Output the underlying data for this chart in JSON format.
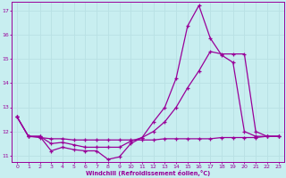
{
  "xlabel": "Windchill (Refroidissement éolien,°C)",
  "bg_color": "#c8eef0",
  "line_color": "#990099",
  "grid_color": "#b8e0e4",
  "xlim": [
    -0.5,
    23.5
  ],
  "ylim": [
    10.75,
    17.35
  ],
  "xticks": [
    0,
    1,
    2,
    3,
    4,
    5,
    6,
    7,
    8,
    9,
    10,
    11,
    12,
    13,
    14,
    15,
    16,
    17,
    18,
    19,
    20,
    21,
    22,
    23
  ],
  "yticks": [
    11,
    12,
    13,
    14,
    15,
    16,
    17
  ],
  "line1_x": [
    0,
    1,
    2,
    3,
    4,
    5,
    6,
    7,
    8,
    9,
    10,
    11,
    12,
    13,
    14,
    15,
    16,
    17,
    18,
    19,
    20,
    21,
    22,
    23
  ],
  "line1_y": [
    12.6,
    11.8,
    11.8,
    11.2,
    11.35,
    11.25,
    11.2,
    11.2,
    10.85,
    10.95,
    11.5,
    11.75,
    12.4,
    13.0,
    14.2,
    16.35,
    17.2,
    15.85,
    15.15,
    14.85,
    12.0,
    11.8,
    11.8,
    11.8
  ],
  "line2_x": [
    0,
    1,
    2,
    3,
    4,
    5,
    6,
    7,
    8,
    9,
    10,
    11,
    12,
    13,
    14,
    15,
    16,
    17,
    18,
    19,
    20,
    21,
    22,
    23
  ],
  "line2_y": [
    12.6,
    11.8,
    11.8,
    11.5,
    11.55,
    11.45,
    11.35,
    11.35,
    11.35,
    11.35,
    11.6,
    11.75,
    12.0,
    12.4,
    13.0,
    13.8,
    14.5,
    15.3,
    15.2,
    15.2,
    15.2,
    12.0,
    11.8,
    11.8
  ],
  "line3_x": [
    0,
    1,
    2,
    3,
    4,
    5,
    6,
    7,
    8,
    9,
    10,
    11,
    12,
    13,
    14,
    15,
    16,
    17,
    18,
    19,
    20,
    21,
    22,
    23
  ],
  "line3_y": [
    12.6,
    11.8,
    11.75,
    11.7,
    11.7,
    11.65,
    11.65,
    11.65,
    11.65,
    11.65,
    11.65,
    11.65,
    11.65,
    11.7,
    11.7,
    11.7,
    11.7,
    11.7,
    11.75,
    11.75,
    11.75,
    11.75,
    11.8,
    11.8
  ]
}
